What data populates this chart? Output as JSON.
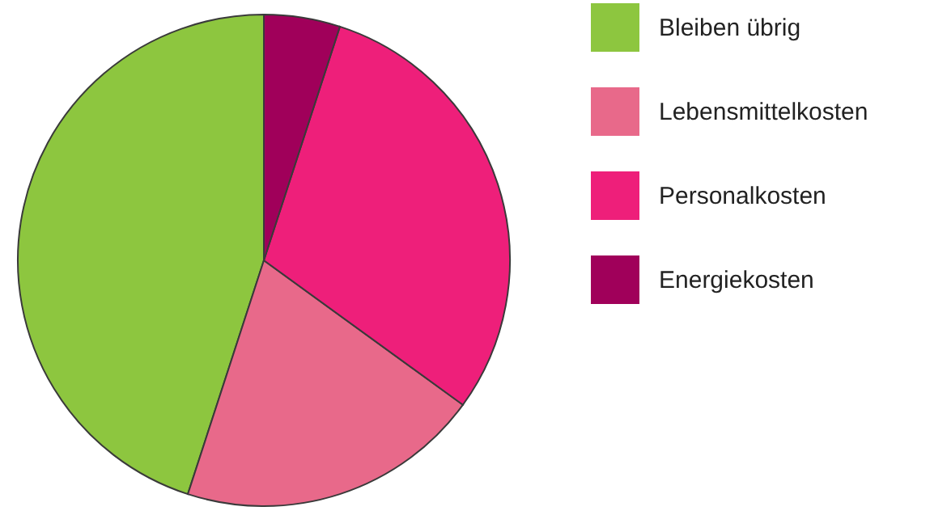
{
  "chart_data": {
    "type": "pie",
    "categories": [
      "Bleiben übrig",
      "Lebensmittelkosten",
      "Personalkosten",
      "Energiekosten"
    ],
    "values": [
      45,
      20,
      30,
      5
    ],
    "colors": [
      "#8dc63f",
      "#e8698a",
      "#ee1f7a",
      "#a0005a"
    ],
    "legend": "right"
  }
}
